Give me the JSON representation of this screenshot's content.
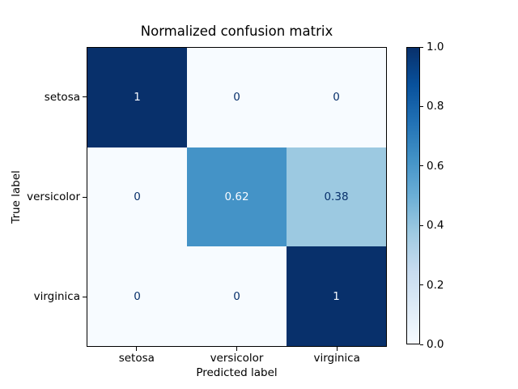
{
  "chart_data": {
    "type": "heatmap",
    "title": "Normalized confusion matrix",
    "xlabel": "Predicted label",
    "ylabel": "True label",
    "x_tick_labels": [
      "setosa",
      "versicolor",
      "virginica"
    ],
    "y_tick_labels": [
      "setosa",
      "versicolor",
      "virginica"
    ],
    "values": [
      [
        1,
        0,
        0
      ],
      [
        0,
        0.62,
        0.38
      ],
      [
        0,
        0,
        1
      ]
    ],
    "cell_labels": [
      [
        "1",
        "0",
        "0"
      ],
      [
        "0",
        "0.62",
        "0.38"
      ],
      [
        "0",
        "0",
        "1"
      ]
    ],
    "value_range": [
      0.0,
      1.0
    ],
    "grid": false,
    "colormap": "Blues",
    "colormap_stops": [
      "#f7fbff",
      "#deebf7",
      "#c6dbef",
      "#9ecae1",
      "#6baed6",
      "#4292c6",
      "#2171b5",
      "#08519c",
      "#08306b"
    ],
    "cell_colors": [
      [
        "#08306b",
        "#f7fbff",
        "#f7fbff"
      ],
      [
        "#f7fbff",
        "#4493c7",
        "#9cc9e1"
      ],
      [
        "#f7fbff",
        "#f7fbff",
        "#08306b"
      ]
    ],
    "cell_text_colors": [
      [
        "#f7fbff",
        "#08306b",
        "#08306b"
      ],
      [
        "#08306b",
        "#f7fbff",
        "#08306b"
      ],
      [
        "#08306b",
        "#08306b",
        "#f7fbff"
      ]
    ],
    "colorbar": {
      "position": "right",
      "tick_labels_top_to_bottom": [
        "1.0",
        "0.8",
        "0.6",
        "0.4",
        "0.2",
        "0.0"
      ]
    }
  }
}
